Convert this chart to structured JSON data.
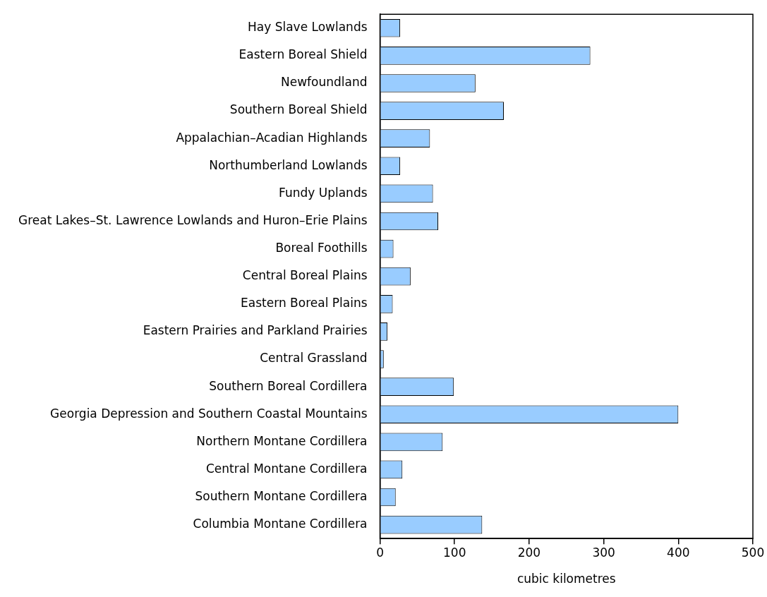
{
  "chart_data": {
    "type": "bar",
    "orientation": "horizontal",
    "xlabel": "cubic kilometres",
    "categories": [
      "Hay Slave Lowlands",
      "Eastern Boreal Shield",
      "Newfoundland",
      "Southern Boreal Shield",
      "Appalachian–Acadian Highlands",
      "Northumberland Lowlands",
      "Fundy Uplands",
      "Great Lakes–St. Lawrence Lowlands and Huron–Erie Plains",
      "Boreal Foothills",
      "Central Boreal Plains",
      "Eastern Boreal Plains",
      "Eastern Prairies and Parkland Prairies",
      "Central Grassland",
      "Southern Boreal Cordillera",
      "Georgia Depression and Southern Coastal Mountains",
      "Northern Montane Cordillera",
      "Central Montane Cordillera",
      "Southern Montane Cordillera",
      "Columbia Montane Cordillera"
    ],
    "values": [
      27,
      282,
      128,
      166,
      67,
      27,
      71,
      78,
      18,
      41,
      17,
      10,
      5,
      99,
      400,
      84,
      30,
      21,
      137
    ],
    "color": "#99ccff",
    "xlim": [
      0,
      500
    ],
    "xticks": [
      0,
      100,
      200,
      300,
      400,
      500
    ],
    "grid": false,
    "legend": false
  }
}
